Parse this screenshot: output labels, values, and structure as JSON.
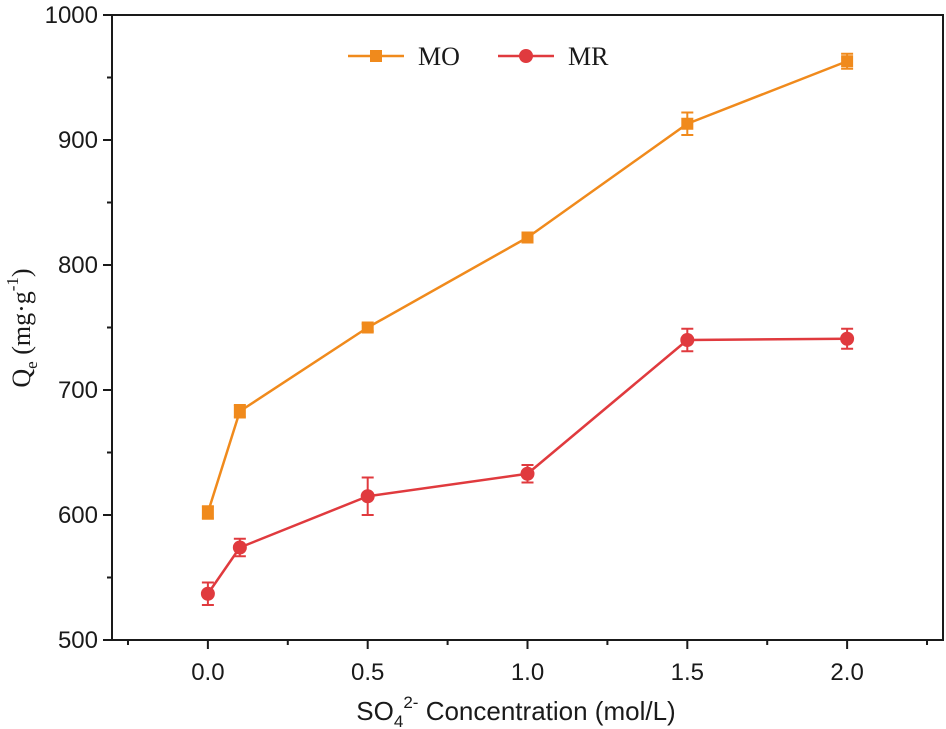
{
  "chart_data": {
    "type": "line",
    "x": [
      0.0,
      0.1,
      0.5,
      1.0,
      1.5,
      2.0
    ],
    "xlabel": {
      "prefix": "SO",
      "sub": "4",
      "sup": "2-",
      "suffix": " Concentration (mol/L)"
    },
    "ylabel": {
      "prefix": "Q",
      "sub": "e",
      "unit_open": " (mg·g",
      "sup": "-1",
      "unit_close": ")"
    },
    "xlim": [
      -0.3,
      2.3
    ],
    "ylim": [
      500,
      1000
    ],
    "xticks": [
      "0.0",
      "0.5",
      "1.0",
      "1.5",
      "2.0"
    ],
    "yticks": [
      "500",
      "600",
      "700",
      "800",
      "900",
      "1000"
    ],
    "legend_position": "top-center",
    "grid": false,
    "series": [
      {
        "name": "MO",
        "color": "#f08a1c",
        "marker": "square",
        "values": [
          602,
          683,
          750,
          822,
          913,
          963
        ],
        "errors": [
          5,
          5,
          3,
          3,
          9,
          6
        ]
      },
      {
        "name": "MR",
        "color": "#e03a3e",
        "marker": "circle",
        "values": [
          537,
          574,
          615,
          633,
          740,
          741
        ],
        "errors": [
          9,
          7,
          15,
          7,
          9,
          8
        ]
      }
    ]
  }
}
